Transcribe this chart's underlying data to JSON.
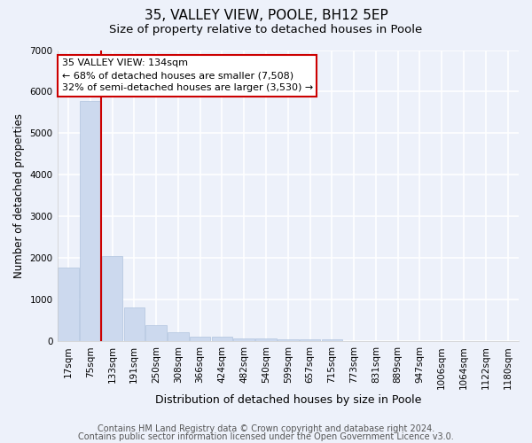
{
  "title1": "35, VALLEY VIEW, POOLE, BH12 5EP",
  "title2": "Size of property relative to detached houses in Poole",
  "xlabel": "Distribution of detached houses by size in Poole",
  "ylabel": "Number of detached properties",
  "categories": [
    "17sqm",
    "75sqm",
    "133sqm",
    "191sqm",
    "250sqm",
    "308sqm",
    "366sqm",
    "424sqm",
    "482sqm",
    "540sqm",
    "599sqm",
    "657sqm",
    "715sqm",
    "773sqm",
    "831sqm",
    "889sqm",
    "947sqm",
    "1006sqm",
    "1064sqm",
    "1122sqm",
    "1180sqm"
  ],
  "values": [
    1780,
    5780,
    2060,
    820,
    380,
    230,
    110,
    110,
    70,
    65,
    60,
    55,
    50,
    0,
    0,
    0,
    0,
    0,
    0,
    0,
    0
  ],
  "bar_color": "#ccd9ee",
  "bar_edge_color": "#b0c4de",
  "property_line_index": 2,
  "annotation_text": "35 VALLEY VIEW: 134sqm\n← 68% of detached houses are smaller (7,508)\n32% of semi-detached houses are larger (3,530) →",
  "annotation_box_color": "#ffffff",
  "annotation_box_edge": "#cc0000",
  "property_line_color": "#cc0000",
  "ylim": [
    0,
    7000
  ],
  "yticks": [
    0,
    1000,
    2000,
    3000,
    4000,
    5000,
    6000,
    7000
  ],
  "footer1": "Contains HM Land Registry data © Crown copyright and database right 2024.",
  "footer2": "Contains public sector information licensed under the Open Government Licence v3.0.",
  "bg_color": "#edf1fa",
  "plot_bg_color": "#edf1fa",
  "grid_color": "#ffffff",
  "title1_fontsize": 11,
  "title2_fontsize": 9.5,
  "xlabel_fontsize": 9,
  "ylabel_fontsize": 8.5,
  "tick_fontsize": 7.5,
  "footer_fontsize": 7,
  "annot_fontsize": 8
}
